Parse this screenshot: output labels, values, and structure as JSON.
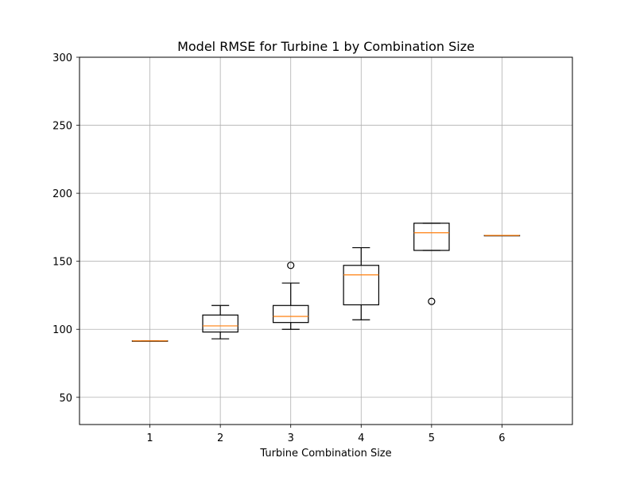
{
  "chart_data": {
    "type": "boxplot",
    "title": "Model RMSE for Turbine 1 by Combination Size",
    "xlabel": "Turbine Combination Size",
    "ylabel": "",
    "categories": [
      "1",
      "2",
      "3",
      "4",
      "5",
      "6"
    ],
    "ylim": [
      30,
      300
    ],
    "yticks": [
      50,
      100,
      150,
      200,
      250,
      300
    ],
    "grid": true,
    "colors": {
      "box": "#000000",
      "median": "#ff7f0e",
      "grid": "#b0b0b0"
    },
    "boxes": [
      {
        "category": "1",
        "whisker_low": 91.5,
        "q1": 91.5,
        "median": 91.5,
        "q3": 91.5,
        "whisker_high": 91.5,
        "outliers": []
      },
      {
        "category": "2",
        "whisker_low": 93,
        "q1": 98,
        "median": 102.5,
        "q3": 110.5,
        "whisker_high": 117.5,
        "outliers": []
      },
      {
        "category": "3",
        "whisker_low": 100,
        "q1": 105,
        "median": 109.5,
        "q3": 117.5,
        "whisker_high": 134,
        "outliers": [
          147
        ]
      },
      {
        "category": "4",
        "whisker_low": 107,
        "q1": 118,
        "median": 140,
        "q3": 147,
        "whisker_high": 160,
        "outliers": []
      },
      {
        "category": "5",
        "whisker_low": 158,
        "q1": 158,
        "median": 171,
        "q3": 178,
        "whisker_high": 178,
        "outliers": [
          120.5
        ]
      },
      {
        "category": "6",
        "whisker_low": 169,
        "q1": 169,
        "median": 169,
        "q3": 169,
        "whisker_high": 169,
        "outliers": []
      }
    ]
  }
}
